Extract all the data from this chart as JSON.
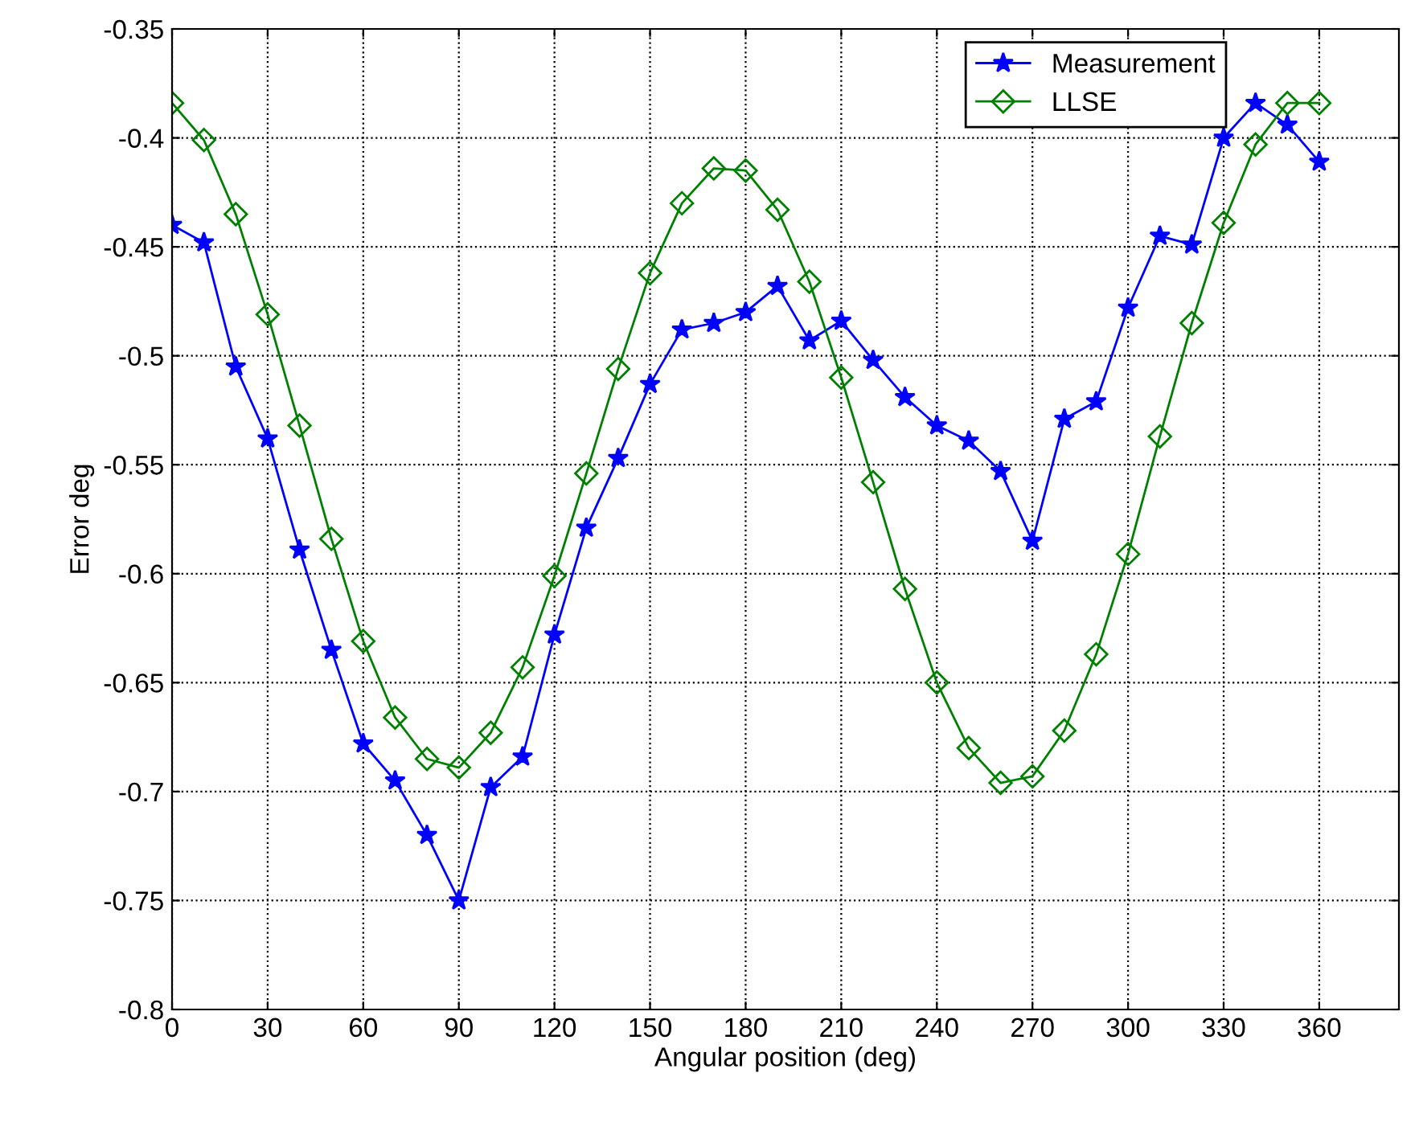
{
  "chart_data": {
    "type": "line",
    "xlabel": "Angular position (deg)",
    "ylabel": "Error deg",
    "xlim": [
      0,
      385
    ],
    "xticks": [
      0,
      30,
      60,
      90,
      120,
      150,
      180,
      210,
      240,
      270,
      300,
      330,
      360
    ],
    "ylim": [
      -0.8,
      -0.35
    ],
    "yticks": [
      -0.8,
      -0.75,
      -0.7,
      -0.65,
      -0.6,
      -0.55,
      -0.5,
      -0.45,
      -0.4,
      -0.35
    ],
    "grid": true,
    "legend": "top right",
    "x": [
      0,
      10,
      20,
      30,
      40,
      50,
      60,
      70,
      80,
      90,
      100,
      110,
      120,
      130,
      140,
      150,
      160,
      170,
      180,
      190,
      200,
      210,
      220,
      230,
      240,
      250,
      260,
      270,
      280,
      290,
      300,
      310,
      320,
      330,
      340,
      350,
      360
    ],
    "series": [
      {
        "name": "Measurement",
        "color": "#0000ff",
        "marker": "star",
        "values": [
          -0.44,
          -0.448,
          -0.505,
          -0.538,
          -0.589,
          -0.635,
          -0.678,
          -0.695,
          -0.72,
          -0.75,
          -0.698,
          -0.684,
          -0.628,
          -0.579,
          -0.547,
          -0.513,
          -0.488,
          -0.485,
          -0.48,
          -0.468,
          -0.493,
          -0.484,
          -0.502,
          -0.519,
          -0.532,
          -0.539,
          -0.553,
          -0.585,
          -0.529,
          -0.521,
          -0.478,
          -0.445,
          -0.449,
          -0.4,
          -0.384,
          -0.394,
          -0.411
        ]
      },
      {
        "name": "LLSE",
        "color": "#008000",
        "marker": "diamond",
        "values": [
          -0.384,
          -0.401,
          -0.435,
          -0.481,
          -0.532,
          -0.584,
          -0.631,
          -0.666,
          -0.685,
          -0.689,
          -0.673,
          -0.643,
          -0.601,
          -0.554,
          -0.506,
          -0.462,
          -0.43,
          -0.414,
          -0.415,
          -0.433,
          -0.466,
          -0.51,
          -0.558,
          -0.607,
          -0.65,
          -0.68,
          -0.696,
          -0.693,
          -0.672,
          -0.637,
          -0.591,
          -0.537,
          -0.485,
          -0.439,
          -0.403,
          -0.384,
          -0.384
        ]
      }
    ]
  }
}
